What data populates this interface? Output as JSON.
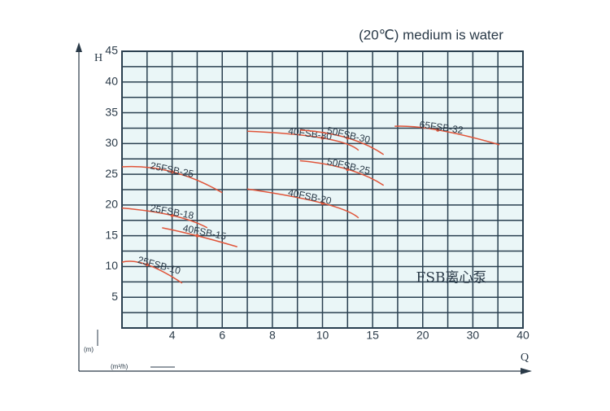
{
  "chart_data": {
    "type": "line",
    "title": "(20℃) medium is water",
    "xlabel": "Q",
    "ylabel": "H",
    "xunit": "(m³/h)",
    "yunit": "(m)",
    "annotation": "FSB离心泵",
    "xlim": [
      2,
      40
    ],
    "xticks": [
      4,
      6,
      8,
      10,
      15,
      20,
      30,
      40
    ],
    "ylim": [
      0,
      45
    ],
    "yticks": [
      5,
      10,
      15,
      20,
      25,
      30,
      35,
      40,
      45
    ],
    "grid": true,
    "color": "#e0553a",
    "series": [
      {
        "name": "25FSB-25",
        "x": [
          2,
          4,
          6
        ],
        "values": [
          26.2,
          25.4,
          22
        ]
      },
      {
        "name": "25FSB-18",
        "x": [
          2,
          4,
          5.4
        ],
        "values": [
          19.5,
          18.3,
          16.3
        ]
      },
      {
        "name": "40FSB-15",
        "x": [
          3.6,
          5,
          6.6
        ],
        "values": [
          16.3,
          15,
          13.2
        ]
      },
      {
        "name": "25FSB-10",
        "x": [
          2,
          3,
          4.4
        ],
        "values": [
          10.7,
          10.3,
          7.3
        ]
      },
      {
        "name": "40FSB-20",
        "x": [
          7,
          10,
          13.6
        ],
        "values": [
          22.6,
          20.3,
          17.9
        ]
      },
      {
        "name": "40FSB-30",
        "x": [
          7,
          10,
          13.6
        ],
        "values": [
          32,
          30.9,
          28.9
        ]
      },
      {
        "name": "50FSB-30",
        "x": [
          9.1,
          12.5,
          16.1
        ],
        "values": [
          32.2,
          30.9,
          28.2
        ]
      },
      {
        "name": "50FSB-25",
        "x": [
          9.1,
          12.5,
          16.1
        ],
        "values": [
          27.2,
          25.8,
          23.2
        ]
      },
      {
        "name": "65FSB-32",
        "x": [
          17.2,
          23,
          35.3
        ],
        "values": [
          32.8,
          32.2,
          29.8
        ]
      }
    ]
  }
}
